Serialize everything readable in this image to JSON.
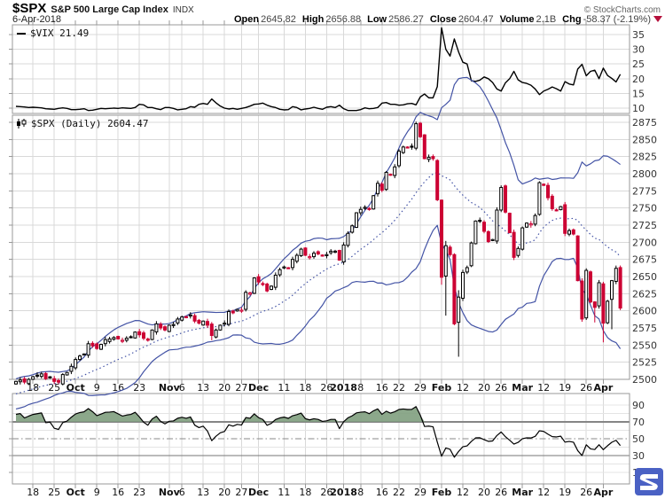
{
  "header": {
    "symbol": "$SPX",
    "name": "S&P 500 Large Cap Index",
    "exchange": "INDX",
    "copyright": "© StockCharts.com",
    "date": "6-Apr-2018",
    "quote": {
      "open_label": "Open",
      "open": "2645.82",
      "high_label": "High",
      "high": "2656.88",
      "low_label": "Low",
      "low": "2586.27",
      "close_label": "Close",
      "close": "2604.47",
      "volume_label": "Volume",
      "volume": "2.1B",
      "chg_label": "Chg",
      "chg": "-58.37 (-2.19%)",
      "chg_direction": "down"
    }
  },
  "panels": {
    "vix_label": "$VIX 21.49",
    "spx_label": "$SPX (Daily) 2604.47"
  },
  "colors": {
    "candle_down": "#cc0033",
    "candle_up_stroke": "#000000",
    "band_blue": "#4353a5",
    "rsi_fill_green": "#7f9e7e",
    "grid": "#d9d9d9",
    "grid_light": "#e4e4e4",
    "border": "#999999",
    "axis_text": "#333333",
    "level_line": "#858585",
    "logo_blue": "#4a61c4",
    "chg_triangle": "#b5103c"
  },
  "x_axis": {
    "labels": [
      {
        "label": "18",
        "day": 4,
        "bold": false
      },
      {
        "label": "25",
        "day": 9,
        "bold": false
      },
      {
        "label": "Oct",
        "day": 14,
        "bold": true
      },
      {
        "label": "9",
        "day": 19,
        "bold": false
      },
      {
        "label": "16",
        "day": 24,
        "bold": false
      },
      {
        "label": "23",
        "day": 29,
        "bold": false
      },
      {
        "label": "Nov",
        "day": 36,
        "bold": true
      },
      {
        "label": "6",
        "day": 39,
        "bold": false
      },
      {
        "label": "13",
        "day": 44,
        "bold": false
      },
      {
        "label": "20",
        "day": 49,
        "bold": false
      },
      {
        "label": "27",
        "day": 53,
        "bold": false
      },
      {
        "label": "Dec",
        "day": 57,
        "bold": true
      },
      {
        "label": "11",
        "day": 63,
        "bold": false
      },
      {
        "label": "18",
        "day": 68,
        "bold": false
      },
      {
        "label": "26",
        "day": 73,
        "bold": false
      },
      {
        "label": "2018",
        "day": 77,
        "bold": true
      },
      {
        "label": "8",
        "day": 81,
        "bold": false
      },
      {
        "label": "16",
        "day": 86,
        "bold": false
      },
      {
        "label": "22",
        "day": 90,
        "bold": false
      },
      {
        "label": "29",
        "day": 95,
        "bold": false
      },
      {
        "label": "Feb",
        "day": 100,
        "bold": true
      },
      {
        "label": "12",
        "day": 105,
        "bold": false
      },
      {
        "label": "20",
        "day": 110,
        "bold": false
      },
      {
        "label": "26",
        "day": 114,
        "bold": false
      },
      {
        "label": "Mar",
        "day": 119,
        "bold": true
      },
      {
        "label": "12",
        "day": 124,
        "bold": false
      },
      {
        "label": "19",
        "day": 129,
        "bold": false
      },
      {
        "label": "26",
        "day": 134,
        "bold": false
      },
      {
        "label": "Apr",
        "day": 138,
        "bold": true
      }
    ]
  },
  "chart_data": [
    {
      "type": "line",
      "name": "$VIX",
      "panel": "vix",
      "last_value": 21.49,
      "ylim": [
        8.2,
        38.3
      ],
      "yticks": [
        10,
        15,
        20,
        25,
        30,
        35
      ],
      "values": [
        10.6,
        10.5,
        10.4,
        10.2,
        10.3,
        10.2,
        10.1,
        9.8,
        9.7,
        9.6,
        9.9,
        10.1,
        9.9,
        9.5,
        9.5,
        9.6,
        9.8,
        9.2,
        9.3,
        9.6,
        9.9,
        9.8,
        9.9,
        10.0,
        9.9,
        10.1,
        10.0,
        9.9,
        10.2,
        11.3,
        11.1,
        10.2,
        10.2,
        9.8,
        9.5,
        10.2,
        10.2,
        9.9,
        9.4,
        9.6,
        9.8,
        10.5,
        10.3,
        11.3,
        11.6,
        11.3,
        13.1,
        11.8,
        10.7,
        10.0,
        9.7,
        9.9,
        9.6,
        9.9,
        10.2,
        10.7,
        11.3,
        11.4,
        11.7,
        11.0,
        10.5,
        10.2,
        9.6,
        9.4,
        9.5,
        10.5,
        10.2,
        9.4,
        9.7,
        9.9,
        10.3,
        9.9,
        9.6,
        10.3,
        10.5,
        10.2,
        11.0,
        9.8,
        9.2,
        9.2,
        9.2,
        9.5,
        10.1,
        9.8,
        9.9,
        10.2,
        11.7,
        11.9,
        11.3,
        11.3,
        11.0,
        11.1,
        11.5,
        11.6,
        11.1,
        13.8,
        14.8,
        13.5,
        13.5,
        17.3,
        37.3,
        30.0,
        27.7,
        33.5,
        29.1,
        25.6,
        25.0,
        19.3,
        19.1,
        19.5,
        20.6,
        20.0,
        18.7,
        16.5,
        15.8,
        18.6,
        20.0,
        22.5,
        19.6,
        18.7,
        18.4,
        17.8,
        16.5,
        14.6,
        15.8,
        16.4,
        17.2,
        16.6,
        15.8,
        19.0,
        18.2,
        17.9,
        23.3,
        24.9,
        21.0,
        22.5,
        22.9,
        20.0,
        23.6,
        21.1,
        20.1,
        18.9,
        21.5
      ]
    },
    {
      "type": "candlestick",
      "name": "$SPX Daily",
      "panel": "main",
      "last_close": 2604.47,
      "ylim": [
        2495,
        2885
      ],
      "yticks": [
        2500,
        2525,
        2550,
        2575,
        2600,
        2625,
        2650,
        2675,
        2700,
        2725,
        2750,
        2775,
        2800,
        2825,
        2850,
        2875
      ],
      "overlays": [
        "Bollinger Bands (20,2) upper/lower solid, middle dotted"
      ],
      "seed_closes": [
        2458,
        2462,
        2465,
        2460,
        2466,
        2470,
        2468,
        2473,
        2476,
        2474,
        2479,
        2482,
        2480,
        2484,
        2487,
        2485,
        2489,
        2492,
        2490,
        2496
      ],
      "closes": [
        2497,
        2499,
        2496,
        2500,
        2504,
        2506,
        2508,
        2501,
        2502,
        2497,
        2496,
        2507,
        2510,
        2519,
        2529,
        2534,
        2537,
        2552,
        2549,
        2545,
        2551,
        2558,
        2559,
        2561,
        2559,
        2557,
        2560,
        2562,
        2569,
        2565,
        2560,
        2557,
        2572,
        2581,
        2575,
        2572,
        2579,
        2580,
        2588,
        2591,
        2590,
        2594,
        2585,
        2582,
        2585,
        2579,
        2564,
        2572,
        2579,
        2582,
        2599,
        2597,
        2602,
        2601,
        2627,
        2626,
        2648,
        2642,
        2639,
        2629,
        2636,
        2652,
        2660,
        2664,
        2662,
        2675,
        2681,
        2690,
        2681,
        2679,
        2684,
        2683,
        2680,
        2682,
        2687,
        2687,
        2674,
        2696,
        2713,
        2724,
        2743,
        2748,
        2751,
        2748,
        2768,
        2786,
        2776,
        2802,
        2798,
        2810,
        2833,
        2839,
        2838,
        2839,
        2873,
        2854,
        2822,
        2824,
        2822,
        2762,
        2649,
        2695,
        2682,
        2581,
        2620,
        2656,
        2663,
        2699,
        2731,
        2732,
        2716,
        2701,
        2704,
        2747,
        2780,
        2744,
        2714,
        2678,
        2691,
        2721,
        2728,
        2727,
        2739,
        2787,
        2783,
        2765,
        2749,
        2747,
        2752,
        2713,
        2717,
        2712,
        2644,
        2588,
        2659,
        2613,
        2605,
        2641,
        2582,
        2614,
        2644,
        2662,
        2604
      ],
      "wick_overrides": {
        "46": {
          "low": 2557
        },
        "100": {
          "low": 2638
        },
        "101": {
          "low": 2593,
          "high": 2702
        },
        "104": {
          "low": 2533,
          "high": 2630
        },
        "136": {
          "low": 2583
        },
        "138": {
          "low": 2554
        },
        "140": {
          "low": 2573
        }
      }
    },
    {
      "type": "line",
      "name": "RSI(14)",
      "panel": "rsi",
      "source": "computed from $SPX closes (Wilder RSI 14)",
      "ylim": [
        -3.7,
        104
      ],
      "yticks": [
        90,
        70,
        50,
        30,
        10
      ],
      "levels": {
        "overbought": 70,
        "mid": 50,
        "oversold": 30
      },
      "fill_above": 70
    }
  ]
}
